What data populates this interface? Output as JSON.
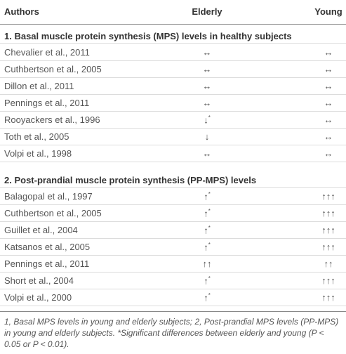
{
  "header": {
    "authors": "Authors",
    "elderly": "Elderly",
    "young": "Young"
  },
  "sections": [
    {
      "title": "1. Basal muscle protein synthesis (MPS) levels in healthy subjects",
      "rows": [
        {
          "author": "Chevalier et al., 2011",
          "elderly": "↔",
          "young": "↔"
        },
        {
          "author": "Cuthbertson et al., 2005",
          "elderly": "↔",
          "young": "↔"
        },
        {
          "author": "Dillon et al., 2011",
          "elderly": "↔",
          "young": "↔"
        },
        {
          "author": "Pennings et al., 2011",
          "elderly": "↔",
          "young": "↔"
        },
        {
          "author": "Rooyackers et al., 1996",
          "elderly": "↓",
          "elderly_sup": "*",
          "young": "↔"
        },
        {
          "author": "Toth et al., 2005",
          "elderly": "↓",
          "young": "↔"
        },
        {
          "author": "Volpi et al., 1998",
          "elderly": "↔",
          "young": "↔"
        }
      ]
    },
    {
      "title": "2. Post-prandial muscle protein synthesis (PP-MPS) levels",
      "rows": [
        {
          "author": "Balagopal et al., 1997",
          "elderly": "↑",
          "elderly_sup": "*",
          "young": "↑↑↑"
        },
        {
          "author": "Cuthbertson et al., 2005",
          "elderly": "↑",
          "elderly_sup": "*",
          "young": "↑↑↑"
        },
        {
          "author": "Guillet et al., 2004",
          "elderly": "↑",
          "elderly_sup": "*",
          "young": "↑↑↑"
        },
        {
          "author": "Katsanos et al., 2005",
          "elderly": "↑",
          "elderly_sup": "*",
          "young": "↑↑↑"
        },
        {
          "author": "Pennings et al., 2011",
          "elderly": "↑↑",
          "young": "↑↑"
        },
        {
          "author": "Short et al., 2004",
          "elderly": "↑",
          "elderly_sup": "*",
          "young": "↑↑↑"
        },
        {
          "author": "Volpi et al., 2000",
          "elderly": "↑",
          "elderly_sup": "*",
          "young": "↑↑↑"
        }
      ]
    }
  ],
  "footnote": "1, Basal MPS levels in young and elderly subjects; 2, Post-prandial MPS levels (PP-MPS) in young and elderly subjects. *Significant differences between elderly and young (P < 0.05 or P < 0.01)."
}
